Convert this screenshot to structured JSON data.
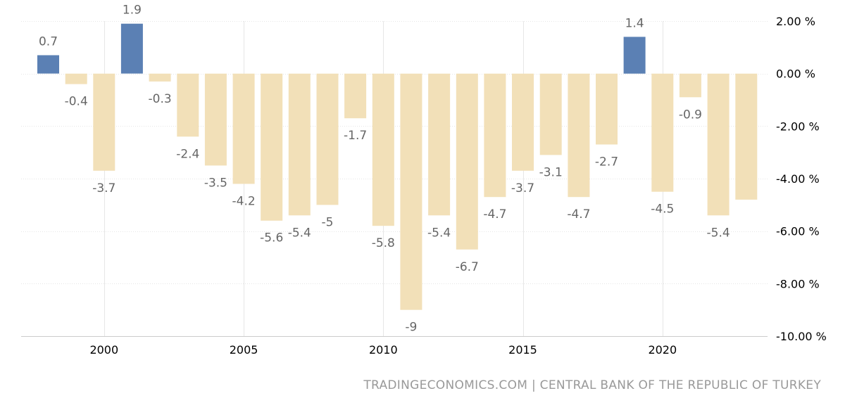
{
  "chart_data": {
    "type": "bar",
    "title": "",
    "xlabel": "",
    "ylabel": "",
    "x": [
      1998,
      1999,
      2000,
      2001,
      2002,
      2003,
      2004,
      2005,
      2006,
      2007,
      2008,
      2009,
      2010,
      2011,
      2012,
      2013,
      2014,
      2015,
      2016,
      2017,
      2018,
      2019,
      2020,
      2021,
      2022,
      2023
    ],
    "values": [
      0.7,
      -0.4,
      -3.7,
      1.9,
      -0.3,
      -2.4,
      -3.5,
      -4.2,
      -5.6,
      -5.4,
      -5,
      -1.7,
      -5.8,
      -9,
      -5.4,
      -6.7,
      -4.7,
      -3.7,
      -3.1,
      -4.7,
      -2.7,
      1.4,
      -4.5,
      -0.9,
      -5.4,
      -4.8
    ],
    "data_labels": [
      "0.7",
      "-0.4",
      "-3.7",
      "1.9",
      "-0.3",
      "-2.4",
      "-3.5",
      "-4.2",
      "-5.6",
      "-5.4",
      "-5",
      "-1.7",
      "-5.8",
      "-9",
      "-5.4",
      "-6.7",
      "-4.7",
      "-3.7",
      "-3.1",
      "-4.7",
      "-2.7",
      "1.4",
      "-4.5",
      "-0.9",
      "-5.4",
      ""
    ],
    "xticks": [
      2000,
      2005,
      2010,
      2015,
      2020
    ],
    "xtick_labels": [
      "2000",
      "2005",
      "2010",
      "2015",
      "2020"
    ],
    "yticks": [
      2,
      0,
      -2,
      -4,
      -6,
      -8,
      -10
    ],
    "ytick_labels": [
      "2.00 %",
      "0.00 %",
      "-2.00 %",
      "-4.00 %",
      "-6.00 %",
      "-8.00 %",
      "-10.00 %"
    ],
    "ylim": [
      -10,
      2
    ],
    "y_axis_position": "right",
    "grid": true,
    "legend": false,
    "colors": {
      "positive": "#5b80b4",
      "negative": "#f2e0b8"
    }
  },
  "source": "TRADINGECONOMICS.COM | CENTRAL BANK OF THE REPUBLIC OF TURKEY"
}
